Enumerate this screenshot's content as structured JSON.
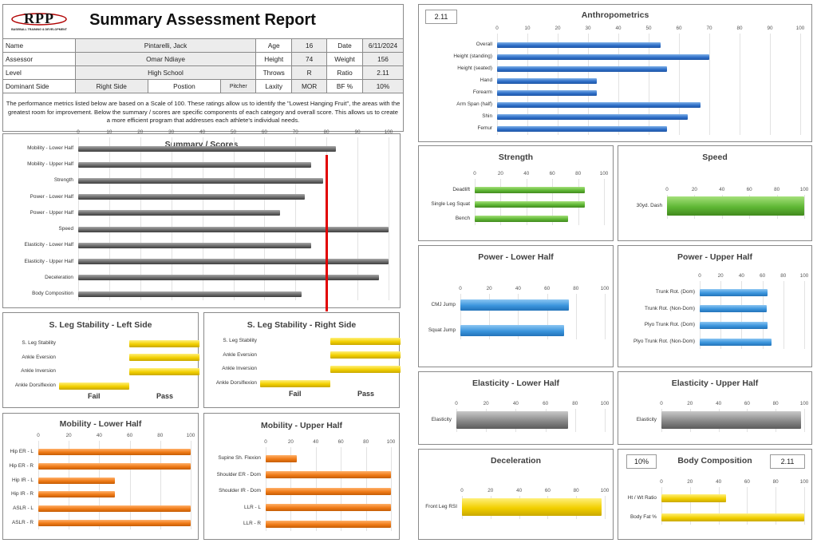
{
  "logo": {
    "text": "RPP",
    "subtitle": "BASEBALL TRAINING & DEVELOPMENT"
  },
  "report_title": "Summary Assessment Report",
  "info": {
    "name_label": "Name",
    "name": "Pintarelli, Jack",
    "age_label": "Age",
    "age": "16",
    "date_label": "Date",
    "date": "6/11/2024",
    "assessor_label": "Assessor",
    "assessor": "Omar Ndiaye",
    "height_label": "Height",
    "height": "74",
    "weight_label": "Weight",
    "weight": "156",
    "level_label": "Level",
    "level": "High School",
    "throws_label": "Throws",
    "throws": "R",
    "ratio_label": "Ratio",
    "ratio": "2.11",
    "dominant_label": "Dominant Side",
    "dominant": "Right Side",
    "position_label": "Postion",
    "position": "Pitcher",
    "laxity_label": "Laxity",
    "laxity": "MOR",
    "bf_label": "BF %",
    "bf": "10%"
  },
  "description": "The performance metrics listed below are based on a Scale of 100. These ratings allow us to identify the \"Lowest Hanging Fruit\", the areas with the greatest room for improvement. Below the summary / scores are specific components of each category and overall score. This allows us to create a more efficient program that addresses each athlete's individual needs.",
  "chart_data": [
    {
      "id": "summary",
      "type": "bar",
      "orientation": "horizontal",
      "title": "Summary / Scores",
      "categories": [
        "Mobility - Lower Half",
        "Mobility - Upper Half",
        "Strength",
        "Power - Lower Half",
        "Power - Upper Half",
        "Speed",
        "Elasticity - Lower Half",
        "Elasticity - Upper Half",
        "Deceleration",
        "Body Composition"
      ],
      "values": [
        83,
        75,
        79,
        73,
        65,
        100,
        75,
        100,
        97,
        72
      ],
      "xlim": [
        0,
        100
      ],
      "ticks": [
        0,
        10,
        20,
        30,
        40,
        50,
        60,
        70,
        80,
        90,
        100
      ],
      "threshold": 80,
      "color": "#6a6a6a",
      "threshold_color": "#e10000"
    },
    {
      "id": "anthro",
      "type": "bar",
      "orientation": "horizontal",
      "title": "Anthropometrics",
      "badge": "2.11",
      "categories": [
        "Overall",
        "Height (standing)",
        "Height (seated)",
        "Hand",
        "Forearm",
        "Arm Span (half)",
        "Shin",
        "Femur"
      ],
      "values": [
        54,
        70,
        56,
        33,
        33,
        67,
        63,
        56
      ],
      "xlim": [
        0,
        100
      ],
      "ticks": [
        0,
        10,
        20,
        30,
        40,
        50,
        60,
        70,
        80,
        90,
        100
      ],
      "color": "#2f6fc8"
    },
    {
      "id": "strength",
      "type": "bar",
      "orientation": "horizontal",
      "title": "Strength",
      "categories": [
        "Deadlift",
        "Single Leg Squat",
        "Bench"
      ],
      "values": [
        85,
        85,
        72
      ],
      "xlim": [
        0,
        100
      ],
      "ticks": [
        0,
        20,
        40,
        60,
        80,
        100
      ],
      "color": "#5fb735"
    },
    {
      "id": "speed",
      "type": "bar",
      "orientation": "horizontal",
      "title": "Speed",
      "categories": [
        "30yd. Dash"
      ],
      "values": [
        100
      ],
      "xlim": [
        0,
        100
      ],
      "ticks": [
        0,
        20,
        40,
        60,
        80,
        100
      ],
      "color": "#5fb735"
    },
    {
      "id": "sls_left",
      "type": "bar",
      "orientation": "horizontal",
      "title": "S. Leg Stability - Left Side",
      "categories": [
        "S. Leg Stability",
        "Ankle Eversion",
        "Ankle Inversion",
        "Ankle Dorsiflexion"
      ],
      "values": [
        "Pass",
        "Pass",
        "Pass",
        "Fail"
      ],
      "xlabels": [
        "Fail",
        "Pass"
      ],
      "color": "#f2cf00"
    },
    {
      "id": "sls_right",
      "type": "bar",
      "orientation": "horizontal",
      "title": "S. Leg Stability - Right Side",
      "categories": [
        "S. Leg Stability",
        "Ankle Eversion",
        "Ankle Inversion",
        "Ankle Dorsiflexion"
      ],
      "values": [
        "Pass",
        "Pass",
        "Pass",
        "Fail"
      ],
      "xlabels": [
        "Fail",
        "Pass"
      ],
      "color": "#f2cf00"
    },
    {
      "id": "power_lower",
      "type": "bar",
      "orientation": "horizontal",
      "title": "Power - Lower Half",
      "categories": [
        "CMJ Jump",
        "Squat Jump"
      ],
      "values": [
        75,
        72
      ],
      "xlim": [
        0,
        100
      ],
      "ticks": [
        0,
        20,
        40,
        60,
        80,
        100
      ],
      "color": "#3b95dd"
    },
    {
      "id": "power_upper",
      "type": "bar",
      "orientation": "horizontal",
      "title": "Power - Upper Half",
      "categories": [
        "Trunk Rot. (Dom)",
        "Trunk Rot. (Non-Dom)",
        "Plyo Trunk Rot. (Dom)",
        "Plyo Trunk Rot. (Non-Dom)"
      ],
      "values": [
        65,
        64,
        65,
        69
      ],
      "xlim": [
        0,
        100
      ],
      "ticks": [
        0,
        20,
        40,
        60,
        80,
        100
      ],
      "color": "#3b95dd"
    },
    {
      "id": "mobility_lower",
      "type": "bar",
      "orientation": "horizontal",
      "title": "Mobility - Lower Half",
      "categories": [
        "Hip ER - L",
        "Hip ER - R",
        "Hip IR - L",
        "Hip IR - R",
        "ASLR - L",
        "ASLR - R"
      ],
      "values": [
        100,
        100,
        50,
        50,
        100,
        100
      ],
      "xlim": [
        0,
        100
      ],
      "ticks": [
        0,
        20,
        40,
        60,
        80,
        100
      ],
      "color": "#ef7a16"
    },
    {
      "id": "mobility_upper",
      "type": "bar",
      "orientation": "horizontal",
      "title": "Mobility - Upper Half",
      "categories": [
        "Supine Sh. Flexion",
        "Shoulder ER - Dom",
        "Shoulder IR - Dom",
        "LLR - L",
        "LLR - R"
      ],
      "values": [
        25,
        100,
        100,
        100,
        100
      ],
      "xlim": [
        0,
        100
      ],
      "ticks": [
        0,
        20,
        40,
        60,
        80,
        100
      ],
      "color": "#ef7a16"
    },
    {
      "id": "elasticity_lower",
      "type": "bar",
      "orientation": "horizontal",
      "title": "Elasticity - Lower Half",
      "categories": [
        "Elasticity"
      ],
      "values": [
        75
      ],
      "xlim": [
        0,
        100
      ],
      "ticks": [
        0,
        20,
        40,
        60,
        80,
        100
      ],
      "color": "#8a8a8a"
    },
    {
      "id": "elasticity_upper",
      "type": "bar",
      "orientation": "horizontal",
      "title": "Elasticity - Upper Half",
      "categories": [
        "Elasticity"
      ],
      "values": [
        98
      ],
      "xlim": [
        0,
        100
      ],
      "ticks": [
        0,
        20,
        40,
        60,
        80,
        100
      ],
      "color": "#8a8a8a"
    },
    {
      "id": "deceleration",
      "type": "bar",
      "orientation": "horizontal",
      "title": "Deceleration",
      "categories": [
        "Front Leg RSI"
      ],
      "values": [
        98
      ],
      "xlim": [
        0,
        100
      ],
      "ticks": [
        0,
        20,
        40,
        60,
        80,
        100
      ],
      "color": "#f2cf00"
    },
    {
      "id": "body_comp",
      "type": "bar",
      "orientation": "horizontal",
      "title": "Body Composition",
      "badge_left": "10%",
      "badge_right": "2.11",
      "categories": [
        "Ht / Wt Ratio",
        "Body Fat %"
      ],
      "values": [
        45,
        100
      ],
      "xlim": [
        0,
        100
      ],
      "ticks": [
        0,
        20,
        40,
        60,
        80,
        100
      ],
      "color": "#f2cf00"
    }
  ]
}
